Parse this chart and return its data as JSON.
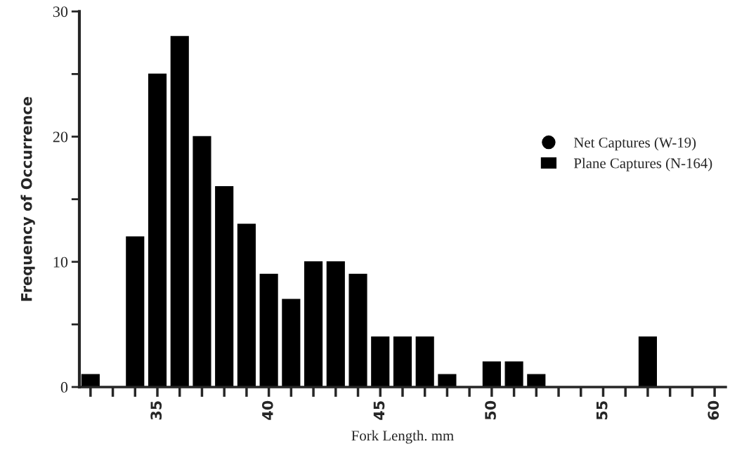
{
  "chart_data": {
    "type": "histogram",
    "xlabel": "Fork Length. mm",
    "ylabel": "Frequency of Occurrence",
    "bins": [
      31.5,
      32.5,
      33.5,
      34.5,
      35.5,
      36.5,
      37.5,
      38.5,
      39.5,
      40.5,
      41.5,
      42.5,
      43.5,
      44.5,
      45.5,
      46.5,
      47.5,
      48.5,
      49.5,
      50.5,
      51.5,
      52.5,
      53.5,
      54.5,
      55.5,
      56.5,
      57.5
    ],
    "series": [
      {
        "name": "Net Captures (W-19)",
        "type": "scatter",
        "marker": "circle",
        "color": "#000000",
        "values": [
          null,
          null,
          null,
          null,
          null,
          null,
          null,
          null,
          null,
          null,
          null,
          null,
          null,
          null,
          null,
          null,
          null,
          null,
          null,
          null,
          null,
          null,
          null,
          null,
          null,
          null
        ]
      },
      {
        "name": "Plane Captures (N-164)",
        "color": "#000000",
        "values": [
          1,
          0,
          12,
          25,
          28,
          20,
          16,
          13,
          9,
          7,
          10,
          10,
          9,
          4,
          4,
          4,
          1,
          0,
          2,
          2,
          1,
          0,
          0,
          0,
          0,
          4
        ]
      }
    ],
    "xlim": [
      31.5,
      60.5
    ],
    "xticks": [
      {
        "value": 32,
        "label": null
      },
      {
        "value": 33,
        "label": null
      },
      {
        "value": 34,
        "label": null
      },
      35,
      {
        "value": 36,
        "label": null
      },
      {
        "value": 37,
        "label": null
      },
      {
        "value": 38,
        "label": null
      },
      {
        "value": 39,
        "label": null
      },
      40,
      {
        "value": 41,
        "label": null
      },
      {
        "value": 42,
        "label": null
      },
      {
        "value": 43,
        "label": null
      },
      {
        "value": 44,
        "label": null
      },
      45,
      {
        "value": 46,
        "label": null
      },
      {
        "value": 47,
        "label": null
      },
      {
        "value": 48,
        "label": null
      },
      {
        "value": 49,
        "label": null
      },
      50,
      {
        "value": 51,
        "label": null
      },
      {
        "value": 52,
        "label": null
      },
      {
        "value": 53,
        "label": null
      },
      {
        "value": 54,
        "label": null
      },
      55,
      {
        "value": 56,
        "label": null
      },
      {
        "value": 57,
        "label": null
      },
      {
        "value": 58,
        "label": null
      },
      {
        "value": 59,
        "label": null
      },
      60
    ],
    "ylim": [
      0,
      30
    ],
    "yticks": [
      0,
      {
        "value": 5,
        "label": null
      },
      10,
      {
        "value": 15,
        "label": null
      },
      20,
      {
        "value": 25,
        "label": null
      },
      30
    ],
    "grid": false,
    "legend": "right"
  }
}
